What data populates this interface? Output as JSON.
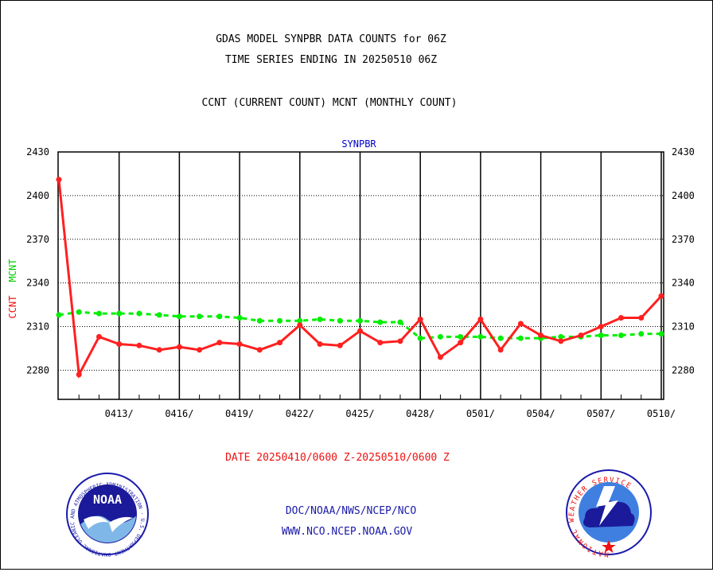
{
  "header": {
    "title_line1": "GDAS MODEL SYNPBR DATA COUNTS for 06Z",
    "title_line2": "TIME SERIES ENDING IN 20250510 06Z",
    "subtitle": "CCNT (CURRENT COUNT) MCNT (MONTHLY COUNT)"
  },
  "footer": {
    "date_range": "DATE 20250410/0600 Z-20250510/0600 Z",
    "org_line": "DOC/NOAA/NWS/NCEP/NCO",
    "url_line": "WWW.NCO.NCEP.NOAA.GOV",
    "noaa_logo_text": "NOAA",
    "noaa_ring_text": "NATIONAL OCEANIC AND ATMOSPHERIC ADMINISTRATION · U.S. DEPARTMENT OF COMMERCE ·",
    "nws_ring_text": "NATIONAL WEATHER SERVICE"
  },
  "colors": {
    "ccnt": "#ff2020",
    "mcnt": "#00ee00",
    "panel_label": "#0000cc",
    "footer_blue": "#1a1aaa",
    "date_red": "#ee1111"
  },
  "chart_data": {
    "type": "line",
    "title": "SYNPBR",
    "ylabel_ccnt": "CCNT",
    "ylabel_mcnt": "MCNT",
    "ylim": [
      2260,
      2430
    ],
    "yticks": [
      2280,
      2310,
      2340,
      2370,
      2400,
      2430
    ],
    "x_tick_labels": [
      "0413/",
      "0416/",
      "0419/",
      "0422/",
      "0425/",
      "0428/",
      "0501/",
      "0504/",
      "0507/",
      "0510/"
    ],
    "grid": true,
    "series": [
      {
        "name": "CCNT",
        "values": [
          2411,
          2277,
          2303,
          2298,
          2297,
          2294,
          2296,
          2294,
          2299,
          2298,
          2294,
          2299,
          2311,
          2298,
          2297,
          2307,
          2299,
          2300,
          2315,
          2289,
          2299,
          2315,
          2294,
          2312,
          2304,
          2300,
          2304,
          2310,
          2316,
          2316,
          2331
        ]
      },
      {
        "name": "MCNT",
        "values": [
          2318,
          2320,
          2319,
          2319,
          2319,
          2318,
          2317,
          2317,
          2317,
          2316,
          2314,
          2314,
          2314,
          2315,
          2314,
          2314,
          2313,
          2313,
          2302,
          2303,
          2303,
          2303,
          2302,
          2302,
          2302,
          2303,
          2303,
          2304,
          2304,
          2305,
          2305
        ]
      }
    ]
  }
}
